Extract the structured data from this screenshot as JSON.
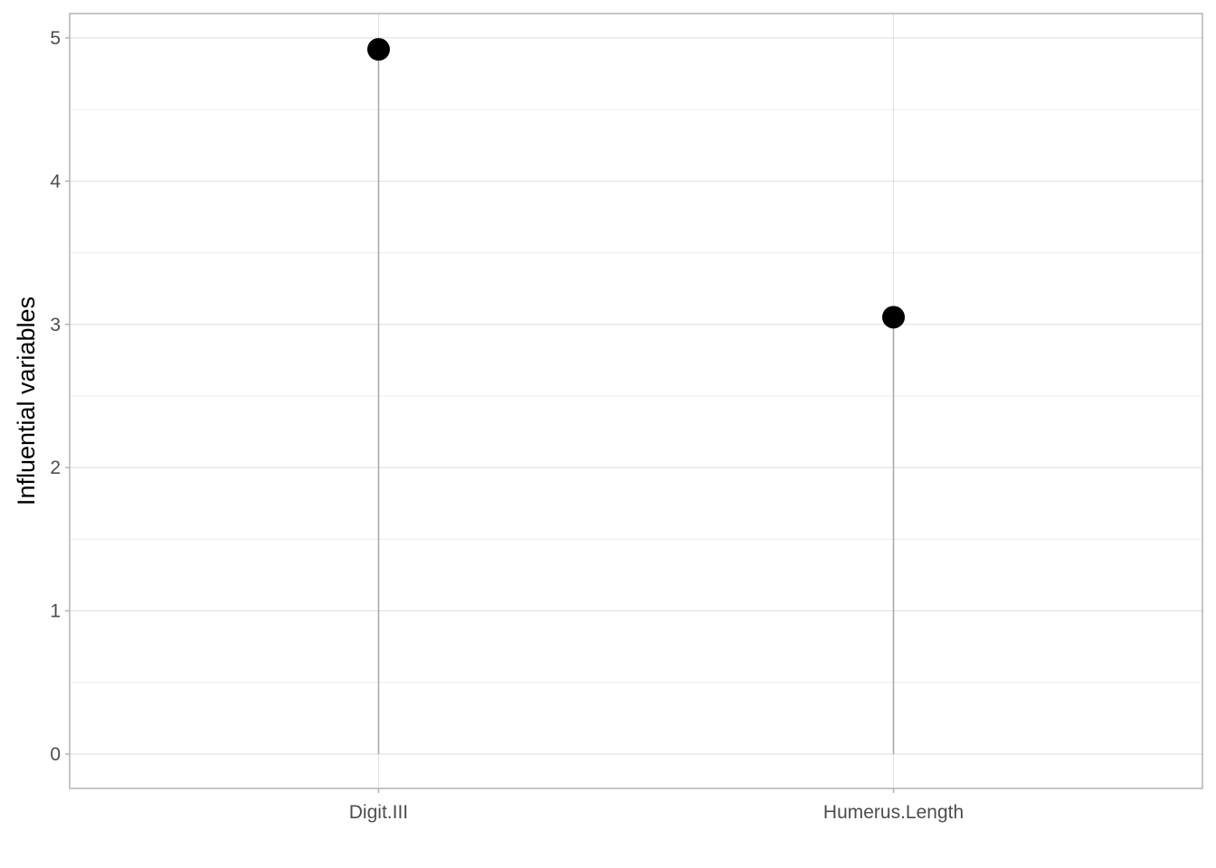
{
  "chart_data": {
    "type": "lollipop",
    "categories": [
      "Digit.III",
      "Humerus.Length"
    ],
    "values": [
      4.92,
      3.05
    ],
    "title": "",
    "xlabel": "",
    "ylabel": "Influential variables",
    "ylim": [
      -0.24,
      5.17
    ],
    "yticks": [
      0,
      1,
      2,
      3,
      4,
      5
    ],
    "grid": true,
    "legend": "none",
    "colors": {
      "point": "#000000",
      "stem": "#a6a6a6",
      "grid_major": "#dedede",
      "grid_minor": "#ececec",
      "panel_border": "#b3b3b3"
    }
  }
}
